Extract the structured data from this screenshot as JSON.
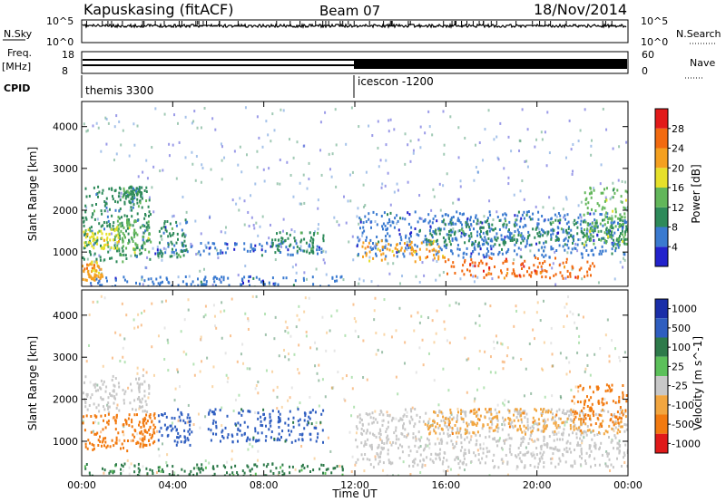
{
  "header": {
    "station": "Kapuskasing (fitACF)",
    "beam": "Beam 07",
    "date": "18/Nov/2014"
  },
  "panels": {
    "nsky": {
      "left_label": "N.Sky",
      "right_label": "N.Search",
      "tick_top": "10^5",
      "tick_bottom": "10^0",
      "right_tick_top": "10^5",
      "right_tick_bottom": "10^0"
    },
    "freq": {
      "left_label": "Freq.",
      "left_unit": "[MHz]",
      "left_ticks": [
        "18",
        "8"
      ],
      "right_label": "Nave",
      "right_ticks": [
        "60",
        "0"
      ]
    },
    "cpid": {
      "label": "CPID",
      "programs": [
        "themis 3300",
        "icescon -1200"
      ]
    }
  },
  "colors": {
    "power": [
      "#2222cc",
      "#3a7ad0",
      "#2e8a5a",
      "#62b65a",
      "#e6e02a",
      "#f4a020",
      "#f26a10",
      "#e21a1a"
    ],
    "velocity": [
      "#1a2ea8",
      "#2f5ec0",
      "#2e7a4a",
      "#5cc05a",
      "#c8c8c8",
      "#f2a640",
      "#f27a10",
      "#e01a1a"
    ]
  },
  "chart_data": [
    {
      "type": "heatmap",
      "title": "Power",
      "xlabel": "",
      "ylabel": "Slant Range [km]",
      "xticks": [
        "00:00",
        "04:00",
        "08:00",
        "12:00",
        "16:00",
        "20:00",
        "00:00"
      ],
      "yticks": [
        "1000",
        "2000",
        "3000",
        "4000"
      ],
      "xlim": [
        0,
        24
      ],
      "ylim": [
        180,
        4600
      ],
      "colorbar": {
        "label": "Power [dB]",
        "ticks": [
          "4",
          "8",
          "12",
          "16",
          "20",
          "24",
          "28"
        ]
      },
      "regions": [
        {
          "t0": 0.0,
          "t1": 3.0,
          "r0": 800,
          "r1": 2600,
          "level": 12
        },
        {
          "t0": 0.0,
          "t1": 0.9,
          "r0": 350,
          "r1": 800,
          "level": 24
        },
        {
          "t0": 0.0,
          "t1": 1.6,
          "r0": 1100,
          "r1": 1600,
          "level": 20
        },
        {
          "t0": 1.5,
          "t1": 3.0,
          "r0": 1000,
          "r1": 1800,
          "level": 16
        },
        {
          "t0": 1.8,
          "t1": 2.6,
          "r0": 2200,
          "r1": 2600,
          "level": 12
        },
        {
          "t0": 3.2,
          "t1": 10.8,
          "r0": 950,
          "r1": 1250,
          "level": 6
        },
        {
          "t0": 3.3,
          "t1": 4.6,
          "r0": 900,
          "r1": 1800,
          "level": 10
        },
        {
          "t0": 8.3,
          "t1": 10.6,
          "r0": 1000,
          "r1": 1500,
          "level": 12
        },
        {
          "t0": 0.0,
          "t1": 11.5,
          "r0": 200,
          "r1": 450,
          "level": 6
        },
        {
          "t0": 12.0,
          "t1": 24.0,
          "r0": 900,
          "r1": 2000,
          "level": 8
        },
        {
          "t0": 12.3,
          "t1": 16.0,
          "r0": 800,
          "r1": 1300,
          "level": 24
        },
        {
          "t0": 16.0,
          "t1": 22.5,
          "r0": 400,
          "r1": 900,
          "level": 28
        },
        {
          "t0": 15.0,
          "t1": 24.0,
          "r0": 1200,
          "r1": 1800,
          "level": 12
        },
        {
          "t0": 22.0,
          "t1": 24.0,
          "r0": 1200,
          "r1": 2600,
          "level": 16
        }
      ]
    },
    {
      "type": "heatmap",
      "title": "Velocity",
      "xlabel": "Time UT",
      "ylabel": "Slant Range [km]",
      "xticks": [
        "00:00",
        "04:00",
        "08:00",
        "12:00",
        "16:00",
        "20:00",
        "00:00"
      ],
      "yticks": [
        "1000",
        "2000",
        "3000",
        "4000"
      ],
      "xlim": [
        0,
        24
      ],
      "ylim": [
        180,
        4600
      ],
      "colorbar": {
        "label": "Velocity [m s^-1]",
        "ticks": [
          "1000",
          "500",
          "100",
          "25",
          "-25",
          "-100",
          "-500",
          "-1000"
        ]
      },
      "regions": [
        {
          "t0": 0.0,
          "t1": 3.0,
          "r0": 1700,
          "r1": 2600,
          "level": 0
        },
        {
          "t0": 0.0,
          "t1": 2.5,
          "r0": 800,
          "r1": 1700,
          "level": -200
        },
        {
          "t0": 2.5,
          "t1": 3.2,
          "r0": 900,
          "r1": 1700,
          "level": -150
        },
        {
          "t0": 3.3,
          "t1": 4.8,
          "r0": 900,
          "r1": 1800,
          "level": 200
        },
        {
          "t0": 5.5,
          "t1": 10.6,
          "r0": 1000,
          "r1": 1800,
          "level": 150
        },
        {
          "t0": 0.0,
          "t1": 11.5,
          "r0": 200,
          "r1": 500,
          "level": 30
        },
        {
          "t0": 12.0,
          "t1": 24.0,
          "r0": 400,
          "r1": 1800,
          "level": 0
        },
        {
          "t0": 15.0,
          "t1": 24.0,
          "r0": 1200,
          "r1": 1800,
          "level": -80
        },
        {
          "t0": 21.5,
          "t1": 24.0,
          "r0": 1400,
          "r1": 2400,
          "level": -300
        }
      ]
    }
  ]
}
